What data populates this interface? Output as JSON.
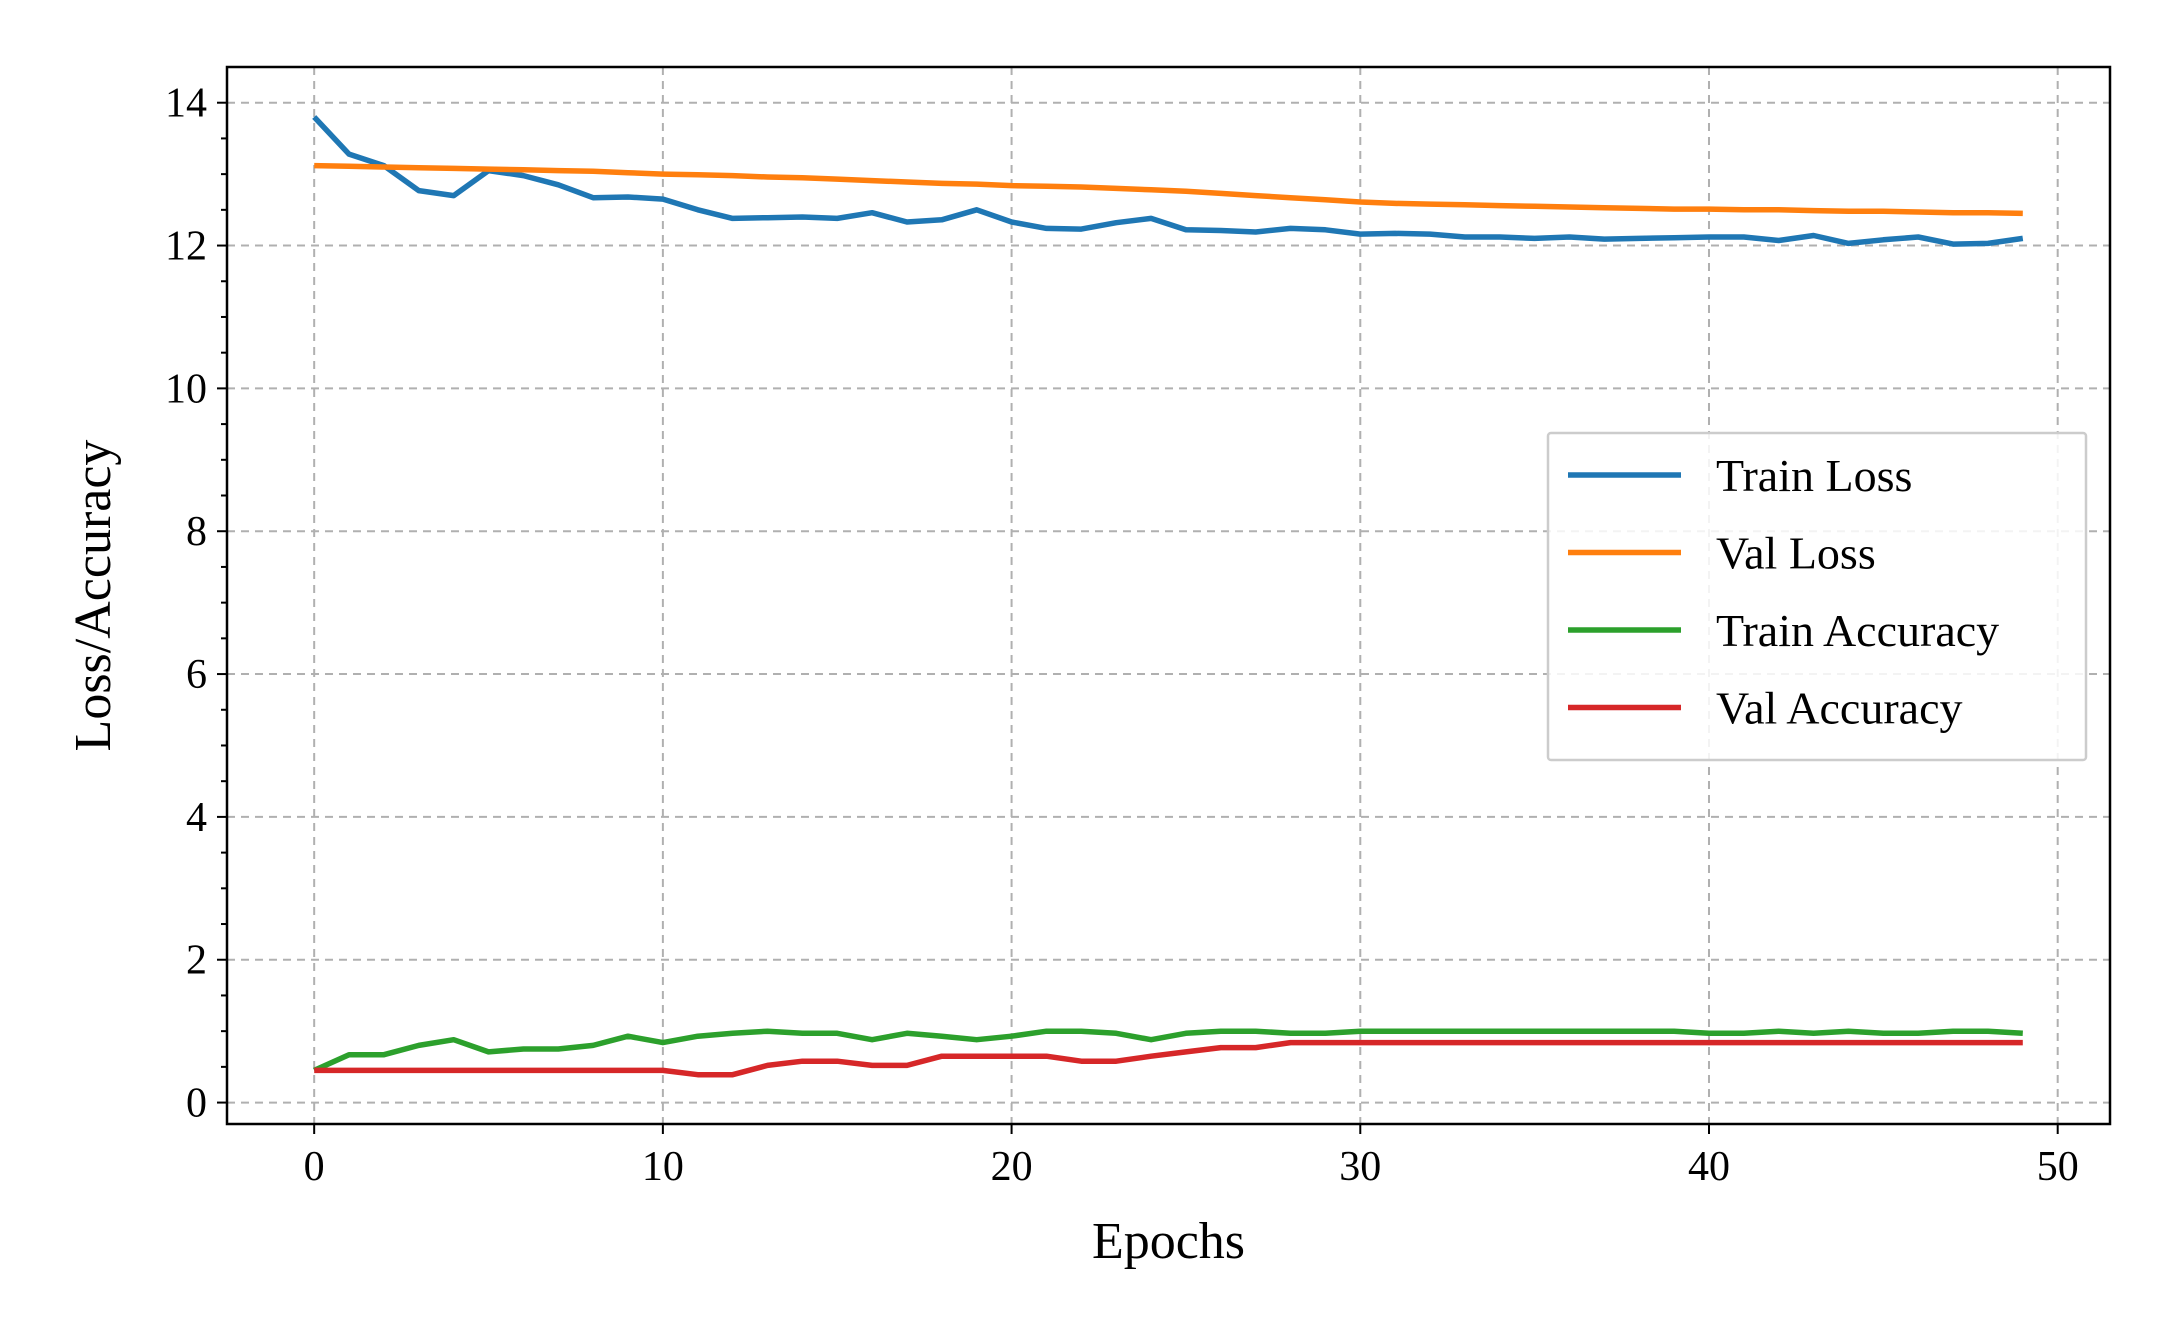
{
  "chart_data": {
    "type": "line",
    "title": "",
    "xlabel": "Epochs",
    "ylabel": "Loss/Accuracy",
    "xlim": [
      -2.5,
      51.5
    ],
    "ylim": [
      -0.3,
      14.5
    ],
    "xticks": [
      0,
      10,
      20,
      30,
      40,
      50
    ],
    "yticks": [
      0,
      2,
      4,
      6,
      8,
      10,
      12,
      14
    ],
    "xtick_labels": [
      "0",
      "10",
      "20",
      "30",
      "40",
      "50"
    ],
    "ytick_labels": [
      "0",
      "2",
      "4",
      "6",
      "8",
      "10",
      "12",
      "14"
    ],
    "grid": true,
    "legend_position": "center-right",
    "x": [
      0,
      1,
      2,
      3,
      4,
      5,
      6,
      7,
      8,
      9,
      10,
      11,
      12,
      13,
      14,
      15,
      16,
      17,
      18,
      19,
      20,
      21,
      22,
      23,
      24,
      25,
      26,
      27,
      28,
      29,
      30,
      31,
      32,
      33,
      34,
      35,
      36,
      37,
      38,
      39,
      40,
      41,
      42,
      43,
      44,
      45,
      46,
      47,
      48,
      49
    ],
    "series": [
      {
        "name": "Train Loss",
        "color": "#1f77b4",
        "values": [
          13.8,
          13.28,
          13.12,
          12.77,
          12.7,
          13.05,
          12.98,
          12.85,
          12.67,
          12.68,
          12.65,
          12.5,
          12.38,
          12.39,
          12.4,
          12.38,
          12.46,
          12.33,
          12.36,
          12.5,
          12.33,
          12.24,
          12.23,
          12.32,
          12.38,
          12.22,
          12.21,
          12.19,
          12.24,
          12.22,
          12.16,
          12.17,
          12.16,
          12.12,
          12.12,
          12.1,
          12.12,
          12.09,
          12.1,
          12.11,
          12.12,
          12.12,
          12.07,
          12.14,
          12.03,
          12.08,
          12.12,
          12.02,
          12.03,
          12.1
        ]
      },
      {
        "name": "Val Loss",
        "color": "#ff7f0e",
        "values": [
          13.12,
          13.11,
          13.1,
          13.09,
          13.08,
          13.07,
          13.06,
          13.05,
          13.04,
          13.02,
          13.0,
          12.99,
          12.98,
          12.96,
          12.95,
          12.93,
          12.91,
          12.89,
          12.87,
          12.86,
          12.84,
          12.83,
          12.82,
          12.8,
          12.78,
          12.76,
          12.73,
          12.7,
          12.67,
          12.64,
          12.61,
          12.59,
          12.58,
          12.57,
          12.56,
          12.55,
          12.54,
          12.53,
          12.52,
          12.51,
          12.51,
          12.5,
          12.5,
          12.49,
          12.48,
          12.48,
          12.47,
          12.46,
          12.46,
          12.45
        ]
      },
      {
        "name": "Train Accuracy",
        "color": "#2ca02c",
        "values": [
          0.45,
          0.67,
          0.67,
          0.8,
          0.88,
          0.71,
          0.75,
          0.75,
          0.8,
          0.93,
          0.84,
          0.93,
          0.97,
          1.0,
          0.97,
          0.97,
          0.88,
          0.97,
          0.93,
          0.88,
          0.93,
          1.0,
          1.0,
          0.97,
          0.88,
          0.97,
          1.0,
          1.0,
          0.97,
          0.97,
          1.0,
          1.0,
          1.0,
          1.0,
          1.0,
          1.0,
          1.0,
          1.0,
          1.0,
          1.0,
          0.97,
          0.97,
          1.0,
          0.97,
          1.0,
          0.97,
          0.97,
          1.0,
          1.0,
          0.97
        ]
      },
      {
        "name": "Val Accuracy",
        "color": "#d62728",
        "values": [
          0.45,
          0.45,
          0.45,
          0.45,
          0.45,
          0.45,
          0.45,
          0.45,
          0.45,
          0.45,
          0.45,
          0.39,
          0.39,
          0.52,
          0.58,
          0.58,
          0.52,
          0.52,
          0.65,
          0.65,
          0.65,
          0.65,
          0.58,
          0.58,
          0.65,
          0.71,
          0.77,
          0.77,
          0.84,
          0.84,
          0.84,
          0.84,
          0.84,
          0.84,
          0.84,
          0.84,
          0.84,
          0.84,
          0.84,
          0.84,
          0.84,
          0.84,
          0.84,
          0.84,
          0.84,
          0.84,
          0.84,
          0.84,
          0.84,
          0.84
        ]
      }
    ]
  }
}
